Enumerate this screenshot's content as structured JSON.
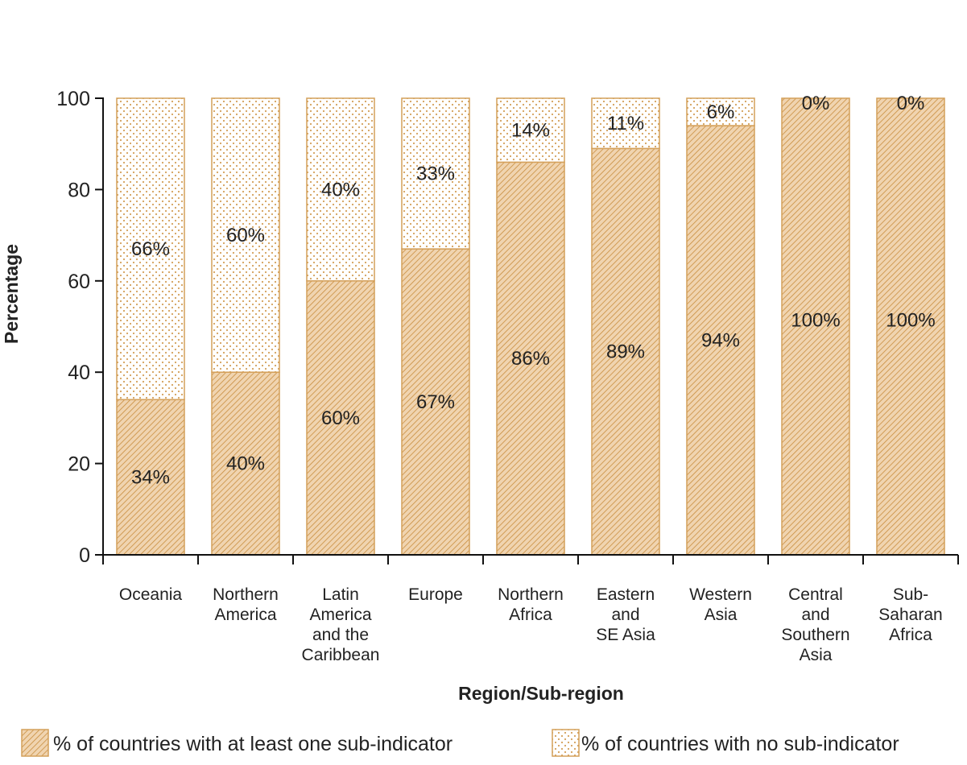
{
  "chart_data": {
    "type": "bar",
    "stacked": true,
    "xlabel": "Region/Sub-region",
    "ylabel": "Percentage",
    "ylim": [
      0,
      100
    ],
    "yticks": [
      0,
      20,
      40,
      60,
      80,
      100
    ],
    "grid": false,
    "legend_position": "bottom",
    "categories": [
      [
        "Oceania"
      ],
      [
        "Northern",
        "America"
      ],
      [
        "Latin",
        "America",
        "and the",
        "Caribbean"
      ],
      [
        "Europe"
      ],
      [
        "Northern",
        "Africa"
      ],
      [
        "Eastern",
        "and",
        "SE Asia"
      ],
      [
        "Western",
        "Asia"
      ],
      [
        "Central",
        "and",
        "Southern",
        "Asia"
      ],
      [
        "Sub-",
        "Saharan",
        "Africa"
      ]
    ],
    "series": [
      {
        "name": "% of countries with at least one sub-indicator",
        "pattern": "hatched",
        "values": [
          34,
          40,
          60,
          67,
          86,
          89,
          94,
          100,
          100
        ],
        "labels": [
          "34%",
          "40%",
          "60%",
          "67%",
          "86%",
          "89%",
          "94%",
          "100%",
          "100%"
        ]
      },
      {
        "name": "% of countries with no sub-indicator",
        "pattern": "dotted",
        "values": [
          66,
          60,
          40,
          33,
          14,
          11,
          6,
          0,
          0
        ],
        "labels": [
          "66%",
          "60%",
          "40%",
          "33%",
          "14%",
          "11%",
          "6%",
          "0%",
          "0%"
        ]
      }
    ]
  },
  "colors": {
    "bar_outline": "#d4a05a",
    "hatch_fill": "#f0d4b0",
    "hatch_line": "#c98d3e",
    "dot_fill": "#ffffff",
    "dot": "#d4a05a",
    "axis": "#111111",
    "text": "#222222"
  }
}
